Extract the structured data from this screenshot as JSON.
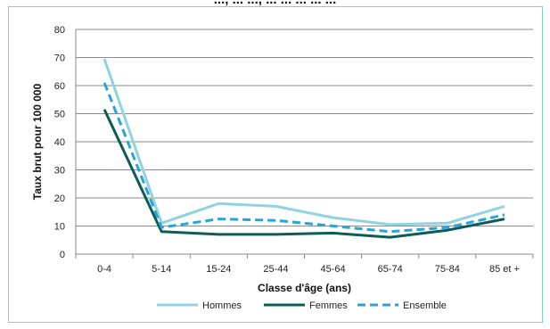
{
  "header": {
    "partial_title": "..., ... ..., ... ... ... ... ..."
  },
  "chart_data": {
    "type": "line",
    "categories": [
      "0-4",
      "5-14",
      "15-24",
      "25-44",
      "45-64",
      "65-74",
      "75-84",
      "85 et +"
    ],
    "series": [
      {
        "name": "Hommes",
        "values": [
          69.5,
          11,
          18,
          17,
          13,
          10.5,
          11,
          17
        ],
        "color": "#8fd3e0",
        "dash": "solid"
      },
      {
        "name": "Femmes",
        "values": [
          51.5,
          8,
          7,
          7,
          7.5,
          6,
          8.5,
          12.5
        ],
        "color": "#0d5c57",
        "dash": "solid"
      },
      {
        "name": "Ensemble",
        "values": [
          61,
          9.5,
          12.5,
          12,
          10,
          8,
          9.5,
          14
        ],
        "color": "#2ba3d9",
        "dash": "dashed"
      }
    ],
    "title": "",
    "xlabel": "Classe d'âge (ans)",
    "ylabel": "Taux brut pour 100 000",
    "ylim": [
      0,
      80
    ],
    "yticks": [
      0,
      10,
      20,
      30,
      40,
      50,
      60,
      70,
      80
    ],
    "grid": true,
    "legend": "bottom"
  }
}
